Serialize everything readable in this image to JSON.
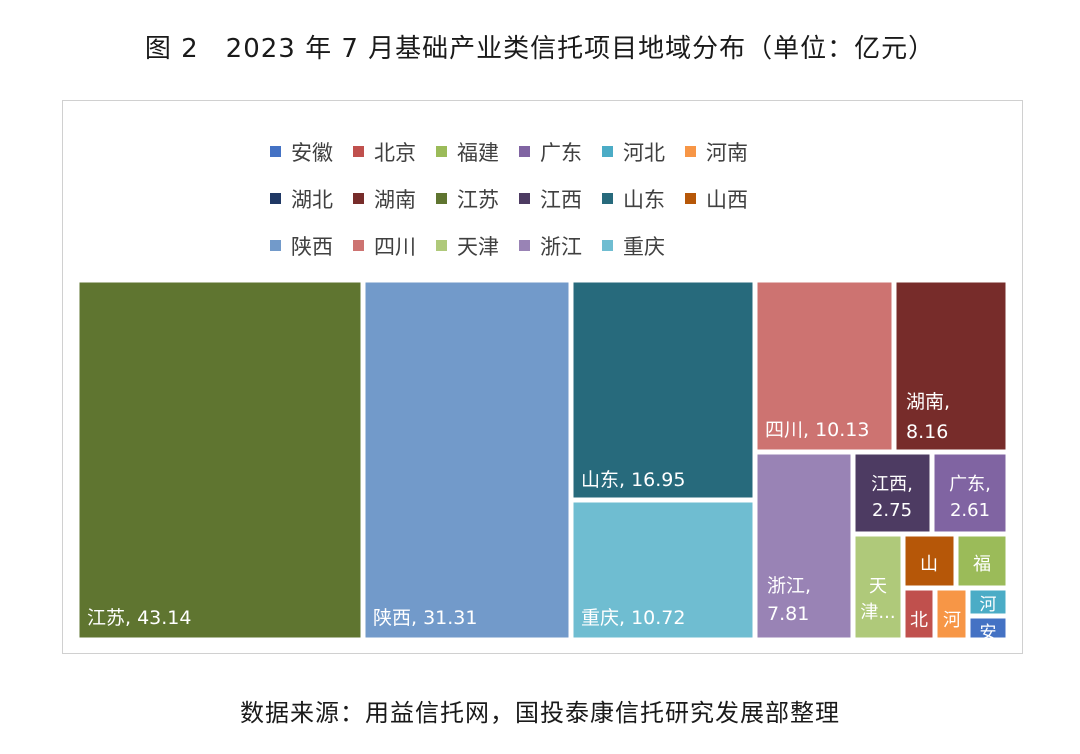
{
  "figure": {
    "title": "图 2　2023 年 7 月基础产业类信托项目地域分布（单位：亿元）",
    "source": "数据来源：用益信托网，国投泰康信托研究发展部整理"
  },
  "chart_data": {
    "type": "treemap",
    "unit": "亿元",
    "legend_rows": [
      [
        "安徽",
        "北京",
        "福建",
        "广东",
        "河北",
        "河南"
      ],
      [
        "湖北",
        "湖南",
        "江苏",
        "江西",
        "山东",
        "山西"
      ],
      [
        "陕西",
        "四川",
        "天津",
        "浙江",
        "重庆"
      ]
    ],
    "series": [
      {
        "name": "安徽",
        "color": "#4472C4"
      },
      {
        "name": "北京",
        "color": "#C0504D"
      },
      {
        "name": "福建",
        "color": "#9BBB59"
      },
      {
        "name": "广东",
        "color": "#8064A2"
      },
      {
        "name": "河北",
        "color": "#4BACC6"
      },
      {
        "name": "河南",
        "color": "#F79646"
      },
      {
        "name": "湖北",
        "color": "#1F3864"
      },
      {
        "name": "湖南",
        "color": "#772C2A"
      },
      {
        "name": "江苏",
        "color": "#5F7530"
      },
      {
        "name": "江西",
        "color": "#4D3B62"
      },
      {
        "name": "山东",
        "color": "#276A7C"
      },
      {
        "name": "山西",
        "color": "#B65708"
      },
      {
        "name": "陕西",
        "color": "#729ACA"
      },
      {
        "name": "四川",
        "color": "#CD7371"
      },
      {
        "name": "天津",
        "color": "#AFC97A"
      },
      {
        "name": "浙江",
        "color": "#9983B5"
      },
      {
        "name": "重庆",
        "color": "#6FBDD1"
      }
    ],
    "tiles": [
      {
        "name": "江苏",
        "value": 43.14,
        "label": "江苏, 43.14"
      },
      {
        "name": "陕西",
        "value": 31.31,
        "label": "陕西, 31.31"
      },
      {
        "name": "山东",
        "value": 16.95,
        "label": "山东, 16.95"
      },
      {
        "name": "重庆",
        "value": 10.72,
        "label": "重庆, 10.72"
      },
      {
        "name": "四川",
        "value": 10.13,
        "label": "四川, 10.13"
      },
      {
        "name": "湖南",
        "value": 8.16,
        "label": "湖南,|8.16"
      },
      {
        "name": "浙江",
        "value": 7.81,
        "label": "浙江,|7.81"
      },
      {
        "name": "江西",
        "value": 2.75,
        "label": "江西,|2.75"
      },
      {
        "name": "广东",
        "value": 2.61,
        "label": "广东,|2.61"
      },
      {
        "name": "天津",
        "value": null,
        "label": "天|津..."
      },
      {
        "name": "山西",
        "value": null,
        "label": "山"
      },
      {
        "name": "福建",
        "value": null,
        "label": "福"
      },
      {
        "name": "北京",
        "value": null,
        "label": "北"
      },
      {
        "name": "河南",
        "value": null,
        "label": "河"
      },
      {
        "name": "河北",
        "value": null,
        "label": "河"
      },
      {
        "name": "安徽",
        "value": null,
        "label": "安"
      }
    ]
  }
}
